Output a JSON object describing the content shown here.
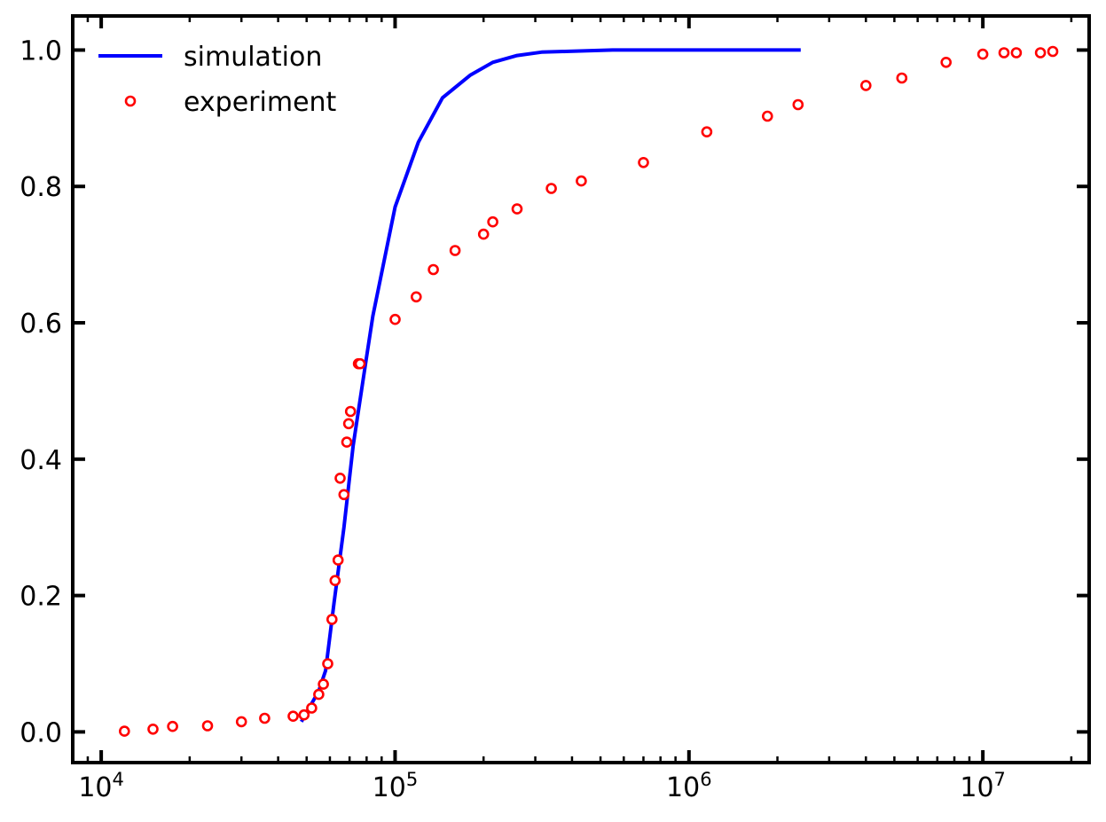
{
  "chart_data": {
    "type": "line",
    "title": "",
    "xlabel": "",
    "ylabel": "",
    "xscale": "log",
    "xlim": [
      8000,
      23000000
    ],
    "ylim": [
      -0.045,
      1.05
    ],
    "grid": false,
    "legend_position": "top-left",
    "x_ticks": [
      {
        "value": 10000,
        "base": "10",
        "exp": "4"
      },
      {
        "value": 100000,
        "base": "10",
        "exp": "5"
      },
      {
        "value": 1000000,
        "base": "10",
        "exp": "6"
      },
      {
        "value": 10000000,
        "base": "10",
        "exp": "7"
      }
    ],
    "y_ticks": [
      {
        "value": 0.0,
        "label": "0.0"
      },
      {
        "value": 0.2,
        "label": "0.2"
      },
      {
        "value": 0.4,
        "label": "0.4"
      },
      {
        "value": 0.6,
        "label": "0.6"
      },
      {
        "value": 0.8,
        "label": "0.8"
      },
      {
        "value": 1.0,
        "label": "1.0"
      }
    ],
    "series": [
      {
        "name": "simulation",
        "style": "line",
        "color": "#0000ff",
        "x": [
          48000,
          55000,
          58000,
          62000,
          67000,
          72000,
          80000,
          84000,
          100000,
          120000,
          145000,
          180000,
          215000,
          260000,
          315000,
          380000,
          450000,
          550000,
          800000,
          1200000,
          2400000
        ],
        "y": [
          0.015,
          0.06,
          0.09,
          0.19,
          0.3,
          0.42,
          0.55,
          0.61,
          0.77,
          0.865,
          0.93,
          0.963,
          0.982,
          0.992,
          0.997,
          0.998,
          0.999,
          1.0,
          1.0,
          1.0,
          1.0
        ]
      },
      {
        "name": "experiment",
        "style": "markers",
        "color": "#ff0000",
        "x": [
          12000,
          15000,
          17500,
          23000,
          30000,
          36000,
          45000,
          49000,
          52000,
          55000,
          57000,
          59000,
          61000,
          62500,
          64000,
          65000,
          67000,
          68500,
          69500,
          70500,
          75000,
          76000,
          100000,
          118000,
          135000,
          160000,
          200000,
          215000,
          260000,
          340000,
          430000,
          700000,
          1150000,
          1850000,
          2350000,
          4000000,
          5300000,
          7500000,
          10000000,
          11800000,
          13000000,
          15700000,
          17300000
        ],
        "y": [
          0.001,
          0.004,
          0.008,
          0.009,
          0.015,
          0.02,
          0.023,
          0.025,
          0.035,
          0.055,
          0.07,
          0.1,
          0.165,
          0.222,
          0.252,
          0.372,
          0.348,
          0.425,
          0.452,
          0.47,
          0.54,
          0.54,
          0.605,
          0.638,
          0.678,
          0.706,
          0.73,
          0.748,
          0.767,
          0.797,
          0.808,
          0.835,
          0.88,
          0.903,
          0.92,
          0.948,
          0.959,
          0.982,
          0.994,
          0.996,
          0.996,
          0.996,
          0.998
        ]
      }
    ]
  }
}
